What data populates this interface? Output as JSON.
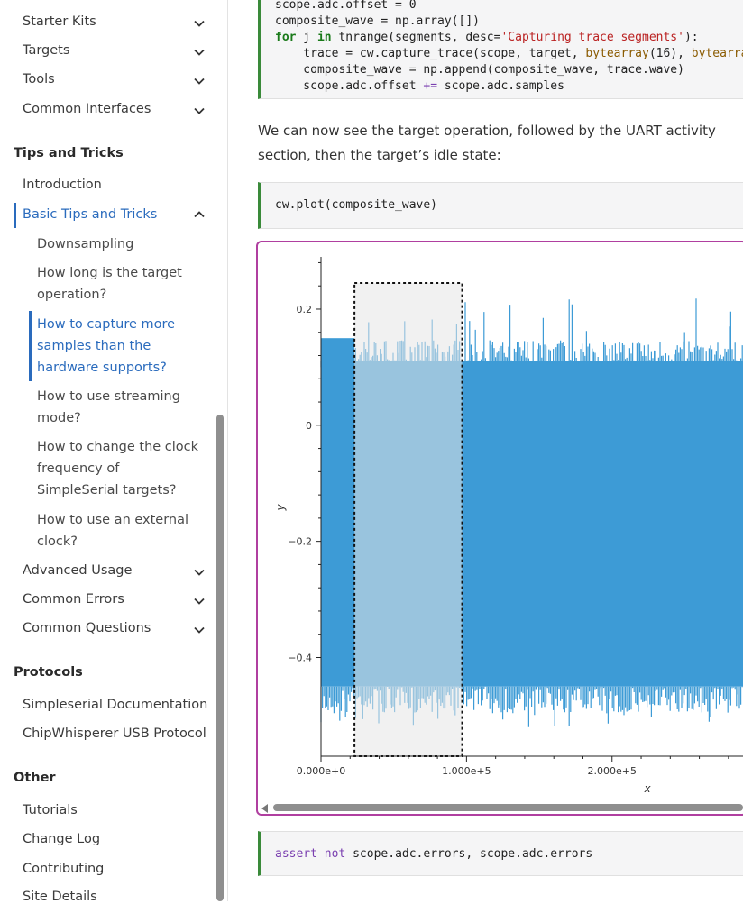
{
  "sidebar": {
    "top_items": [
      {
        "label": "Starter Kits"
      },
      {
        "label": "Targets"
      },
      {
        "label": "Tools"
      },
      {
        "label": "Common Interfaces"
      }
    ],
    "tips_section": {
      "heading": "Tips and Tricks",
      "introduction": "Introduction",
      "basic": "Basic Tips and Tricks",
      "sub": [
        "Downsampling",
        "How long is the target operation?",
        "How to capture more samples than the hardware supports?",
        "How to use streaming mode?",
        "How to change the clock frequency of SimpleSerial targets?",
        "How to use an external clock?"
      ],
      "advanced": "Advanced Usage",
      "errors": "Common Errors",
      "questions": "Common Questions"
    },
    "protocols": {
      "heading": "Protocols",
      "items": [
        "Simpleserial Documentation",
        "ChipWhisperer USB Protocol"
      ]
    },
    "other": {
      "heading": "Other",
      "items": [
        "Tutorials",
        "Change Log",
        "Contributing",
        "Site Details"
      ]
    }
  },
  "main": {
    "code1": {
      "line0": "scope.adc.offset = 0",
      "line1_a": "composite_wave = np.array([])",
      "line2_kw1": "for",
      "line2_a": " j ",
      "line2_kw2": "in",
      "line2_b": " tnrange(segments, desc=",
      "line2_str": "'Capturing trace segments'",
      "line2_c": "):",
      "line3_a": "    trace = cw.capture_trace(scope, target, ",
      "line3_fn": "bytearray",
      "line3_b": "(16), ",
      "line3_fn2": "bytearray",
      "line4": "    composite_wave = np.append(composite_wave, trace.wave)",
      "line5_a": "    scope.adc.offset ",
      "line5_op": "+=",
      "line5_b": " scope.adc.samples"
    },
    "paragraph": "We can now see the target operation, followed by the UART activity section, then the target’s idle state:",
    "code2": "cw.plot(composite_wave)",
    "code3": {
      "kw1": "assert",
      "kw2": "not",
      "rest": " scope.adc.errors, scope.adc.errors"
    }
  },
  "colors": {
    "accent": "#2a6bbd",
    "trace": "#3d9bd6",
    "output_border": "#b03fa0"
  },
  "chart_data": {
    "type": "line",
    "title": "",
    "xlabel": "x",
    "ylabel": "y",
    "x_ticks": [
      "0.000e+0",
      "1.000e+5",
      "2.000e+5"
    ],
    "y_ticks": [
      "0.2",
      "0",
      "−0.2",
      "−0.4"
    ],
    "y_tick_values": [
      0.2,
      0,
      -0.2,
      -0.4
    ],
    "xlim": [
      0,
      290000
    ],
    "ylim": [
      -0.57,
      0.29
    ],
    "series": [
      {
        "name": "composite_wave",
        "color": "#3d9bd6",
        "envelope": {
          "upper_main": 0.11,
          "upper_spikes": 0.22,
          "lower_main": -0.45,
          "lower_spikes": -0.52
        }
      }
    ],
    "highlight_region": {
      "x_start": 23000,
      "x_end": 97000,
      "y_top": 0.245,
      "y_bottom": -0.57
    }
  }
}
